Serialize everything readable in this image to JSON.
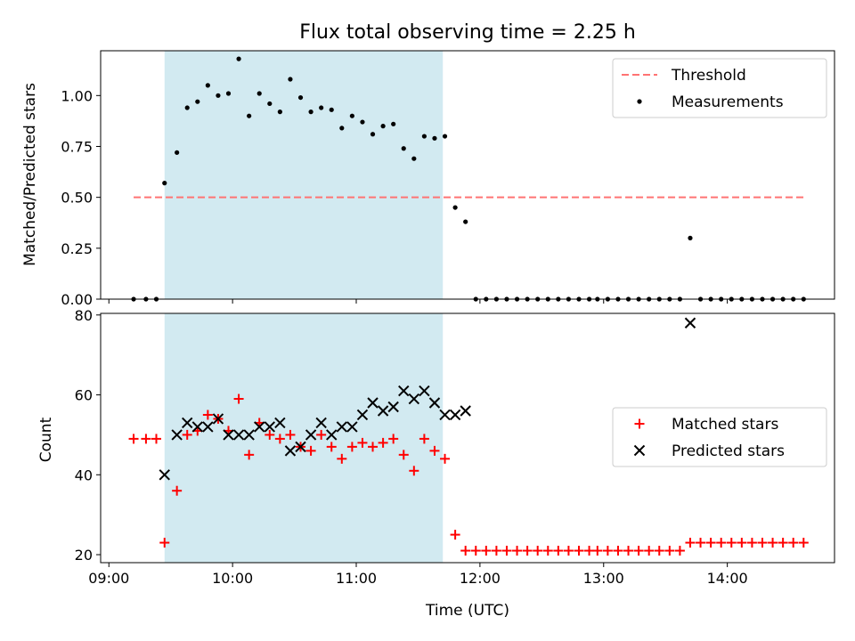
{
  "title": "Flux total observing time = 2.25 h",
  "xlabel": "Time (UTC)",
  "x_tick_labels": [
    "09:00",
    "10:00",
    "11:00",
    "12:00",
    "13:00",
    "14:00"
  ],
  "x_ticks": [
    "09:00",
    "10:00",
    "11:00",
    "12:00",
    "13:00",
    "14:00"
  ],
  "xlim": [
    "08:56",
    "14:52"
  ],
  "shaded_interval": [
    "09:27",
    "11:42"
  ],
  "colors": {
    "shade": "#add8e6",
    "threshold": "#ff7373",
    "measurement": "#000000",
    "matched": "#ff0000",
    "predicted": "#000000"
  },
  "chart_data": [
    {
      "type": "scatter",
      "panel": "top",
      "ylabel": "Matched/Predicted stars",
      "ylim": [
        0,
        1.22
      ],
      "y_ticks": [
        0,
        0.25,
        0.5,
        0.75,
        1.0
      ],
      "y_tick_labels": [
        "0.00",
        "0.25",
        "0.50",
        "0.75",
        "1.00"
      ],
      "legend_position": "top-right",
      "threshold": {
        "name": "Threshold",
        "value": 0.5,
        "x_range": [
          "09:12",
          "14:37"
        ]
      },
      "series": [
        {
          "name": "Measurements",
          "marker": "dot",
          "points": [
            [
              "09:12",
              0
            ],
            [
              "09:18",
              0
            ],
            [
              "09:23",
              0
            ],
            [
              "09:27",
              0.57
            ],
            [
              "09:33",
              0.72
            ],
            [
              "09:38",
              0.94
            ],
            [
              "09:43",
              0.97
            ],
            [
              "09:48",
              1.05
            ],
            [
              "09:53",
              1.0
            ],
            [
              "09:58",
              1.01
            ],
            [
              "10:03",
              1.18
            ],
            [
              "10:08",
              0.9
            ],
            [
              "10:13",
              1.01
            ],
            [
              "10:18",
              0.96
            ],
            [
              "10:23",
              0.92
            ],
            [
              "10:28",
              1.08
            ],
            [
              "10:33",
              0.99
            ],
            [
              "10:38",
              0.92
            ],
            [
              "10:43",
              0.94
            ],
            [
              "10:48",
              0.93
            ],
            [
              "10:53",
              0.84
            ],
            [
              "10:58",
              0.9
            ],
            [
              "11:03",
              0.87
            ],
            [
              "11:08",
              0.81
            ],
            [
              "11:13",
              0.85
            ],
            [
              "11:18",
              0.86
            ],
            [
              "11:23",
              0.74
            ],
            [
              "11:28",
              0.69
            ],
            [
              "11:33",
              0.8
            ],
            [
              "11:38",
              0.79
            ],
            [
              "11:43",
              0.8
            ],
            [
              "11:48",
              0.45
            ],
            [
              "11:53",
              0.38
            ],
            [
              "11:58",
              0
            ],
            [
              "12:03",
              0
            ],
            [
              "12:08",
              0
            ],
            [
              "12:13",
              0
            ],
            [
              "12:18",
              0
            ],
            [
              "12:23",
              0
            ],
            [
              "12:28",
              0
            ],
            [
              "12:33",
              0
            ],
            [
              "12:38",
              0
            ],
            [
              "12:43",
              0
            ],
            [
              "12:48",
              0
            ],
            [
              "12:53",
              0
            ],
            [
              "12:57",
              0
            ],
            [
              "13:02",
              0
            ],
            [
              "13:07",
              0
            ],
            [
              "13:12",
              0
            ],
            [
              "13:17",
              0
            ],
            [
              "13:22",
              0
            ],
            [
              "13:27",
              0
            ],
            [
              "13:32",
              0
            ],
            [
              "13:37",
              0
            ],
            [
              "13:42",
              0.3
            ],
            [
              "13:47",
              0
            ],
            [
              "13:52",
              0
            ],
            [
              "13:57",
              0
            ],
            [
              "14:02",
              0
            ],
            [
              "14:07",
              0
            ],
            [
              "14:12",
              0
            ],
            [
              "14:17",
              0
            ],
            [
              "14:22",
              0
            ],
            [
              "14:27",
              0
            ],
            [
              "14:32",
              0
            ],
            [
              "14:37",
              0
            ]
          ]
        }
      ]
    },
    {
      "type": "scatter",
      "panel": "bottom",
      "ylabel": "Count",
      "ylim": [
        18,
        80.4
      ],
      "y_ticks": [
        20,
        40,
        60,
        80
      ],
      "y_tick_labels": [
        "20",
        "40",
        "60",
        "80"
      ],
      "legend_position": "center-right",
      "series": [
        {
          "name": "Matched stars",
          "marker": "plus",
          "points": [
            [
              "09:12",
              49
            ],
            [
              "09:18",
              49
            ],
            [
              "09:23",
              49
            ],
            [
              "09:27",
              23
            ],
            [
              "09:33",
              36
            ],
            [
              "09:38",
              50
            ],
            [
              "09:43",
              51
            ],
            [
              "09:48",
              55
            ],
            [
              "09:53",
              54
            ],
            [
              "09:58",
              51
            ],
            [
              "10:03",
              59
            ],
            [
              "10:08",
              45
            ],
            [
              "10:13",
              53
            ],
            [
              "10:18",
              50
            ],
            [
              "10:23",
              49
            ],
            [
              "10:28",
              50
            ],
            [
              "10:33",
              47
            ],
            [
              "10:38",
              46
            ],
            [
              "10:43",
              50
            ],
            [
              "10:48",
              47
            ],
            [
              "10:53",
              44
            ],
            [
              "10:58",
              47
            ],
            [
              "11:03",
              48
            ],
            [
              "11:08",
              47
            ],
            [
              "11:13",
              48
            ],
            [
              "11:18",
              49
            ],
            [
              "11:23",
              45
            ],
            [
              "11:28",
              41
            ],
            [
              "11:33",
              49
            ],
            [
              "11:38",
              46
            ],
            [
              "11:43",
              44
            ],
            [
              "11:48",
              25
            ],
            [
              "11:53",
              21
            ],
            [
              "11:58",
              21
            ],
            [
              "12:03",
              21
            ],
            [
              "12:08",
              21
            ],
            [
              "12:13",
              21
            ],
            [
              "12:18",
              21
            ],
            [
              "12:23",
              21
            ],
            [
              "12:28",
              21
            ],
            [
              "12:33",
              21
            ],
            [
              "12:38",
              21
            ],
            [
              "12:43",
              21
            ],
            [
              "12:48",
              21
            ],
            [
              "12:53",
              21
            ],
            [
              "12:57",
              21
            ],
            [
              "13:02",
              21
            ],
            [
              "13:07",
              21
            ],
            [
              "13:12",
              21
            ],
            [
              "13:17",
              21
            ],
            [
              "13:22",
              21
            ],
            [
              "13:27",
              21
            ],
            [
              "13:32",
              21
            ],
            [
              "13:37",
              21
            ],
            [
              "13:42",
              23
            ],
            [
              "13:47",
              23
            ],
            [
              "13:52",
              23
            ],
            [
              "13:57",
              23
            ],
            [
              "14:02",
              23
            ],
            [
              "14:07",
              23
            ],
            [
              "14:12",
              23
            ],
            [
              "14:17",
              23
            ],
            [
              "14:22",
              23
            ],
            [
              "14:27",
              23
            ],
            [
              "14:32",
              23
            ],
            [
              "14:37",
              23
            ]
          ]
        },
        {
          "name": "Predicted stars",
          "marker": "x",
          "points": [
            [
              "09:27",
              40
            ],
            [
              "09:33",
              50
            ],
            [
              "09:38",
              53
            ],
            [
              "09:43",
              52
            ],
            [
              "09:48",
              52
            ],
            [
              "09:53",
              54
            ],
            [
              "09:58",
              50
            ],
            [
              "10:03",
              50
            ],
            [
              "10:08",
              50
            ],
            [
              "10:13",
              52
            ],
            [
              "10:18",
              52
            ],
            [
              "10:23",
              53
            ],
            [
              "10:28",
              46
            ],
            [
              "10:33",
              47
            ],
            [
              "10:38",
              50
            ],
            [
              "10:43",
              53
            ],
            [
              "10:48",
              50
            ],
            [
              "10:53",
              52
            ],
            [
              "10:58",
              52
            ],
            [
              "11:03",
              55
            ],
            [
              "11:08",
              58
            ],
            [
              "11:13",
              56
            ],
            [
              "11:18",
              57
            ],
            [
              "11:23",
              61
            ],
            [
              "11:28",
              59
            ],
            [
              "11:33",
              61
            ],
            [
              "11:38",
              58
            ],
            [
              "11:43",
              55
            ],
            [
              "11:48",
              55
            ],
            [
              "11:53",
              56
            ],
            [
              "13:42",
              78
            ]
          ]
        }
      ]
    }
  ]
}
